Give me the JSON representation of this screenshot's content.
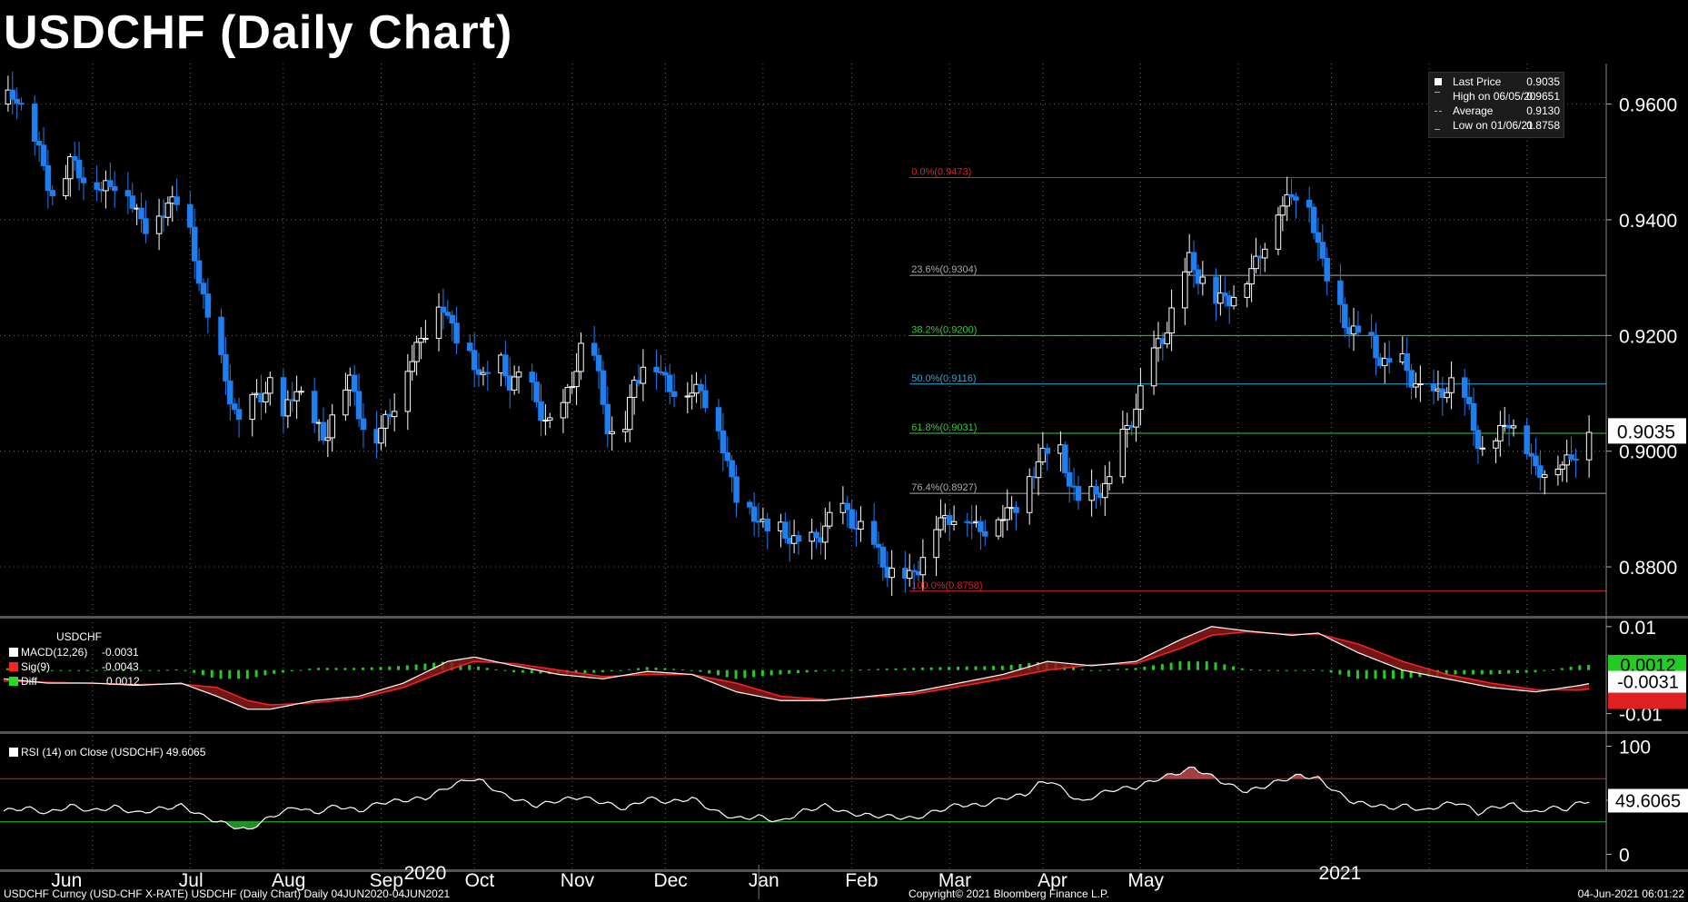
{
  "title": "USDCHF (Daily Chart)",
  "legend": {
    "items": [
      {
        "label": "Last Price",
        "value": "0.9035"
      },
      {
        "label": "High on 06/05/20",
        "value": "0.9651"
      },
      {
        "label": "Average",
        "value": "0.9130"
      },
      {
        "label": "Low on 01/06/21",
        "value": "0.8758"
      }
    ]
  },
  "macd_panel": {
    "name": "USDCHF",
    "rows": [
      {
        "label": "MACD(12,26)",
        "value": "-0.0031",
        "color": "#ffffff"
      },
      {
        "label": "Sig(9)",
        "value": "-0.0043",
        "color": "#ff2020"
      },
      {
        "label": "Diff",
        "value": "0.0012",
        "color": "#22dd22"
      }
    ]
  },
  "rsi_panel": {
    "label": "RSI (14)  on Close (USDCHF) 49.6065"
  },
  "footer": {
    "left": "USDCHF Curncy (USD-CHF X-RATE) USDCHF (Daily Chart)  Daily 04JUN2020-04JUN2021",
    "center": "Copyright© 2021 Bloomberg Finance L.P.",
    "right": "04-Jun-2021 06:01:22"
  },
  "colors": {
    "background": "#000000",
    "bull_candle": "#ffffff",
    "bear_candle": "#1e7ff0",
    "fib_red": "#e02020",
    "fib_gray": "#aaaaaa",
    "fib_green": "#33cc33",
    "fib_cyan": "#22aadd"
  },
  "chart_data": [
    {
      "type": "candlestick",
      "title": "USDCHF (Daily Chart)",
      "ylim": [
        0.872,
        0.967
      ],
      "y_ticks": [
        "0.9600",
        "0.9400",
        "0.9200",
        "0.9000",
        "0.8800"
      ],
      "y_tick_values": [
        0.96,
        0.94,
        0.92,
        0.9,
        0.88
      ],
      "x_month_labels": [
        "Jun",
        "Jul",
        "Aug",
        "Sep",
        "Oct",
        "Nov",
        "Dec",
        "Jan",
        "Feb",
        "Mar",
        "Apr",
        "May"
      ],
      "year_labels": [
        "2020",
        "2021"
      ],
      "last_price_label": "0.9035",
      "last_price": 0.9035,
      "price_path": [
        [
          0,
          0.96
        ],
        [
          3,
          0.962
        ],
        [
          6,
          0.956
        ],
        [
          9,
          0.949
        ],
        [
          12,
          0.943
        ],
        [
          15,
          0.95
        ],
        [
          18,
          0.948
        ],
        [
          22,
          0.945
        ],
        [
          25,
          0.947
        ],
        [
          28,
          0.944
        ],
        [
          31,
          0.94
        ],
        [
          34,
          0.938
        ],
        [
          37,
          0.943
        ],
        [
          40,
          0.944
        ],
        [
          44,
          0.93
        ],
        [
          47,
          0.92
        ],
        [
          50,
          0.912
        ],
        [
          53,
          0.905
        ],
        [
          56,
          0.908
        ],
        [
          60,
          0.912
        ],
        [
          63,
          0.905
        ],
        [
          66,
          0.912
        ],
        [
          69,
          0.906
        ],
        [
          72,
          0.902
        ],
        [
          75,
          0.909
        ],
        [
          78,
          0.912
        ],
        [
          81,
          0.905
        ],
        [
          84,
          0.902
        ],
        [
          87,
          0.907
        ],
        [
          90,
          0.912
        ],
        [
          93,
          0.918
        ],
        [
          96,
          0.923
        ],
        [
          99,
          0.925
        ],
        [
          102,
          0.92
        ],
        [
          105,
          0.916
        ],
        [
          108,
          0.913
        ],
        [
          111,
          0.916
        ],
        [
          114,
          0.912
        ],
        [
          117,
          0.914
        ],
        [
          120,
          0.908
        ],
        [
          123,
          0.905
        ],
        [
          126,
          0.907
        ],
        [
          130,
          0.918
        ],
        [
          133,
          0.916
        ],
        [
          136,
          0.905
        ],
        [
          139,
          0.9
        ],
        [
          142,
          0.912
        ],
        [
          145,
          0.917
        ],
        [
          148,
          0.913
        ],
        [
          151,
          0.911
        ],
        [
          154,
          0.91
        ],
        [
          157,
          0.911
        ],
        [
          160,
          0.906
        ],
        [
          163,
          0.898
        ],
        [
          166,
          0.89
        ],
        [
          169,
          0.889
        ],
        [
          172,
          0.887
        ],
        [
          175,
          0.886
        ],
        [
          178,
          0.885
        ],
        [
          181,
          0.883
        ],
        [
          184,
          0.886
        ],
        [
          187,
          0.89
        ],
        [
          190,
          0.889
        ],
        [
          193,
          0.887
        ],
        [
          196,
          0.883
        ],
        [
          199,
          0.88
        ],
        [
          202,
          0.878
        ],
        [
          204,
          0.878
        ],
        [
          207,
          0.882
        ],
        [
          210,
          0.887
        ],
        [
          213,
          0.889
        ],
        [
          216,
          0.889
        ],
        [
          219,
          0.887
        ],
        [
          222,
          0.887
        ],
        [
          225,
          0.889
        ],
        [
          228,
          0.891
        ],
        [
          231,
          0.895
        ],
        [
          234,
          0.9
        ],
        [
          237,
          0.902
        ],
        [
          240,
          0.895
        ],
        [
          243,
          0.89
        ],
        [
          246,
          0.893
        ],
        [
          249,
          0.895
        ],
        [
          252,
          0.902
        ],
        [
          255,
          0.908
        ],
        [
          258,
          0.915
        ],
        [
          261,
          0.92
        ],
        [
          264,
          0.926
        ],
        [
          267,
          0.933
        ],
        [
          270,
          0.93
        ],
        [
          273,
          0.926
        ],
        [
          276,
          0.927
        ],
        [
          279,
          0.928
        ],
        [
          282,
          0.933
        ],
        [
          285,
          0.938
        ],
        [
          288,
          0.943
        ],
        [
          291,
          0.945
        ],
        [
          294,
          0.942
        ],
        [
          297,
          0.933
        ],
        [
          300,
          0.926
        ],
        [
          303,
          0.921
        ],
        [
          306,
          0.921
        ],
        [
          309,
          0.917
        ],
        [
          312,
          0.915
        ],
        [
          315,
          0.915
        ],
        [
          318,
          0.912
        ],
        [
          321,
          0.908
        ],
        [
          324,
          0.911
        ],
        [
          327,
          0.912
        ],
        [
          330,
          0.907
        ],
        [
          333,
          0.9
        ],
        [
          336,
          0.902
        ],
        [
          339,
          0.906
        ],
        [
          342,
          0.902
        ],
        [
          345,
          0.897
        ],
        [
          348,
          0.897
        ],
        [
          351,
          0.898
        ],
        [
          354,
          0.9
        ],
        [
          357,
          0.9035
        ]
      ],
      "fibonacci": [
        {
          "label": "0.0%(0.9473)",
          "value": 0.9473,
          "color": "#e02020"
        },
        {
          "label": "23.6%(0.9304)",
          "value": 0.9304,
          "color": "#aaaaaa"
        },
        {
          "label": "38.2%(0.9200)",
          "value": 0.92,
          "color": "#33cc33"
        },
        {
          "label": "50.0%(0.9116)",
          "value": 0.9116,
          "color": "#22aadd"
        },
        {
          "label": "61.8%(0.9031)",
          "value": 0.9031,
          "color": "#33cc33"
        },
        {
          "label": "76.4%(0.8927)",
          "value": 0.8927,
          "color": "#aaaaaa"
        },
        {
          "label": "100.0%(0.8758)",
          "value": 0.8758,
          "color": "#e02020"
        }
      ]
    },
    {
      "type": "line",
      "name": "MACD",
      "ylim": [
        -0.013,
        0.011
      ],
      "y_ticks": [
        "0.01",
        "-0.01"
      ],
      "y_tick_values": [
        0.01,
        -0.01
      ],
      "value_labels": [
        "0.0012",
        "-0.0031"
      ],
      "macd": [
        [
          0,
          -0.002
        ],
        [
          10,
          -0.003
        ],
        [
          20,
          -0.003
        ],
        [
          30,
          -0.0035
        ],
        [
          40,
          -0.003
        ],
        [
          48,
          -0.006
        ],
        [
          55,
          -0.009
        ],
        [
          60,
          -0.009
        ],
        [
          70,
          -0.007
        ],
        [
          80,
          -0.006
        ],
        [
          90,
          -0.003
        ],
        [
          100,
          0.002
        ],
        [
          106,
          0.003
        ],
        [
          115,
          0.001
        ],
        [
          125,
          -0.001
        ],
        [
          135,
          -0.002
        ],
        [
          145,
          -0.0003
        ],
        [
          155,
          -0.001
        ],
        [
          165,
          -0.005
        ],
        [
          175,
          -0.007
        ],
        [
          185,
          -0.007
        ],
        [
          195,
          -0.006
        ],
        [
          205,
          -0.005
        ],
        [
          215,
          -0.003
        ],
        [
          225,
          -0.001
        ],
        [
          235,
          0.002
        ],
        [
          245,
          0.001
        ],
        [
          255,
          0.002
        ],
        [
          265,
          0.007
        ],
        [
          272,
          0.01
        ],
        [
          280,
          0.009
        ],
        [
          290,
          0.008
        ],
        [
          296,
          0.0085
        ],
        [
          305,
          0.004
        ],
        [
          315,
          0.0
        ],
        [
          325,
          -0.002
        ],
        [
          335,
          -0.004
        ],
        [
          345,
          -0.005
        ],
        [
          355,
          -0.0035
        ],
        [
          357,
          -0.0031
        ]
      ],
      "signal": [
        [
          0,
          -0.0025
        ],
        [
          10,
          -0.0028
        ],
        [
          20,
          -0.003
        ],
        [
          30,
          -0.0033
        ],
        [
          40,
          -0.0032
        ],
        [
          48,
          -0.004
        ],
        [
          55,
          -0.007
        ],
        [
          60,
          -0.008
        ],
        [
          70,
          -0.0075
        ],
        [
          80,
          -0.0065
        ],
        [
          90,
          -0.004
        ],
        [
          100,
          0.0
        ],
        [
          106,
          0.002
        ],
        [
          115,
          0.0015
        ],
        [
          125,
          0.0
        ],
        [
          135,
          -0.0015
        ],
        [
          145,
          -0.001
        ],
        [
          155,
          -0.001
        ],
        [
          165,
          -0.003
        ],
        [
          175,
          -0.006
        ],
        [
          185,
          -0.0068
        ],
        [
          195,
          -0.0062
        ],
        [
          205,
          -0.0055
        ],
        [
          215,
          -0.0038
        ],
        [
          225,
          -0.002
        ],
        [
          235,
          0.0
        ],
        [
          245,
          0.0012
        ],
        [
          255,
          0.0015
        ],
        [
          265,
          0.005
        ],
        [
          272,
          0.008
        ],
        [
          280,
          0.0088
        ],
        [
          290,
          0.0082
        ],
        [
          296,
          0.0083
        ],
        [
          305,
          0.006
        ],
        [
          315,
          0.002
        ],
        [
          325,
          -0.001
        ],
        [
          335,
          -0.003
        ],
        [
          345,
          -0.0045
        ],
        [
          355,
          -0.0046
        ],
        [
          357,
          -0.0043
        ]
      ]
    },
    {
      "type": "line",
      "name": "RSI",
      "ylim": [
        -8,
        108
      ],
      "y_ticks": [
        "100",
        "50",
        "0"
      ],
      "y_tick_values": [
        100,
        50,
        0
      ],
      "value_label": "49.6065",
      "overbought": 70,
      "oversold": 30,
      "rsi": [
        [
          0,
          40
        ],
        [
          5,
          43
        ],
        [
          10,
          38
        ],
        [
          15,
          45
        ],
        [
          20,
          40
        ],
        [
          25,
          44
        ],
        [
          30,
          38
        ],
        [
          35,
          42
        ],
        [
          40,
          45
        ],
        [
          45,
          35
        ],
        [
          50,
          28
        ],
        [
          55,
          22
        ],
        [
          58,
          30
        ],
        [
          62,
          38
        ],
        [
          66,
          44
        ],
        [
          70,
          38
        ],
        [
          75,
          45
        ],
        [
          80,
          40
        ],
        [
          85,
          48
        ],
        [
          90,
          50
        ],
        [
          95,
          52
        ],
        [
          100,
          62
        ],
        [
          105,
          70
        ],
        [
          108,
          67
        ],
        [
          112,
          56
        ],
        [
          116,
          50
        ],
        [
          120,
          45
        ],
        [
          125,
          50
        ],
        [
          130,
          53
        ],
        [
          135,
          48
        ],
        [
          140,
          42
        ],
        [
          145,
          52
        ],
        [
          150,
          48
        ],
        [
          155,
          52
        ],
        [
          160,
          40
        ],
        [
          165,
          33
        ],
        [
          170,
          35
        ],
        [
          175,
          30
        ],
        [
          180,
          40
        ],
        [
          185,
          45
        ],
        [
          190,
          38
        ],
        [
          195,
          36
        ],
        [
          200,
          35
        ],
        [
          205,
          33
        ],
        [
          210,
          40
        ],
        [
          215,
          46
        ],
        [
          220,
          45
        ],
        [
          225,
          52
        ],
        [
          230,
          55
        ],
        [
          233,
          65
        ],
        [
          236,
          68
        ],
        [
          240,
          55
        ],
        [
          243,
          48
        ],
        [
          246,
          55
        ],
        [
          250,
          60
        ],
        [
          255,
          62
        ],
        [
          260,
          70
        ],
        [
          265,
          76
        ],
        [
          268,
          80
        ],
        [
          272,
          72
        ],
        [
          276,
          64
        ],
        [
          280,
          58
        ],
        [
          284,
          63
        ],
        [
          288,
          69
        ],
        [
          292,
          73
        ],
        [
          296,
          70
        ],
        [
          300,
          58
        ],
        [
          304,
          48
        ],
        [
          308,
          46
        ],
        [
          312,
          43
        ],
        [
          316,
          45
        ],
        [
          320,
          40
        ],
        [
          324,
          46
        ],
        [
          328,
          48
        ],
        [
          332,
          38
        ],
        [
          336,
          44
        ],
        [
          340,
          46
        ],
        [
          344,
          38
        ],
        [
          348,
          43
        ],
        [
          352,
          42
        ],
        [
          355,
          48
        ],
        [
          357,
          49.6065
        ]
      ]
    }
  ]
}
